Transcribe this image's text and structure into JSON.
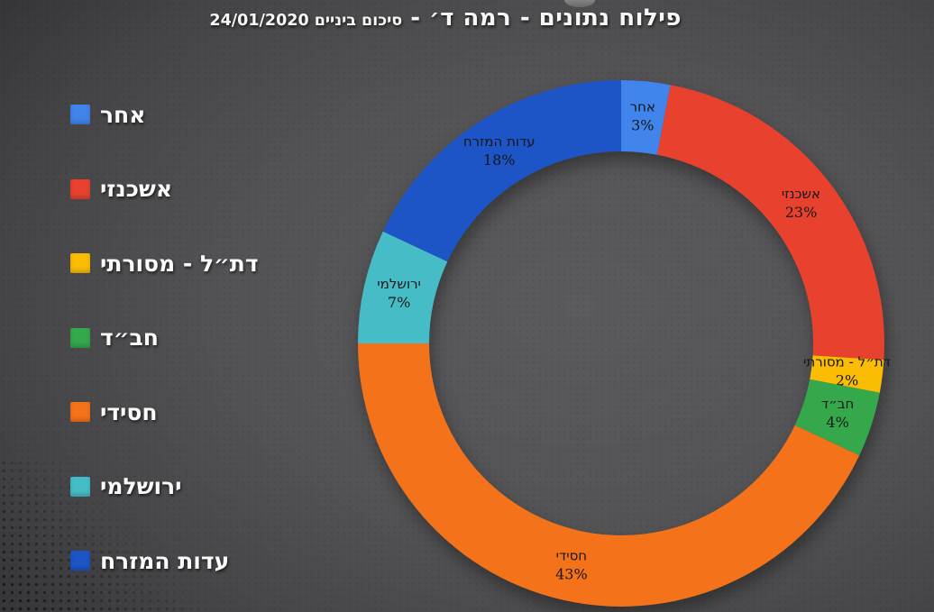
{
  "title": {
    "main": "פילוח נתונים - רמה ד׳ -",
    "sub": "סיכום ביניים 24/01/2020"
  },
  "legend": {
    "position": "left",
    "items": [
      {
        "label": "אחר",
        "color": "#4184EC"
      },
      {
        "label": "אשכנזי",
        "color": "#E8422F"
      },
      {
        "label": "דת״ל - מסורתי",
        "color": "#FBBC04"
      },
      {
        "label": "חב״ד",
        "color": "#35A84C"
      },
      {
        "label": "חסידי",
        "color": "#F4731A"
      },
      {
        "label": "ירושלמי",
        "color": "#46BDC6"
      },
      {
        "label": "עדות המזרח",
        "color": "#1D55C6"
      }
    ]
  },
  "chart_data": {
    "type": "pie",
    "subtype": "donut",
    "title": "פילוח נתונים - רמה ד׳ - סיכום ביניים 24/01/2020",
    "categories": [
      "אחר",
      "אשכנזי",
      "דת״ל - מסורתי",
      "חב״ד",
      "חסידי",
      "ירושלמי",
      "עדות המזרח"
    ],
    "values": [
      3,
      23,
      2,
      4,
      43,
      7,
      18
    ],
    "unit": "%",
    "colors": [
      "#4184EC",
      "#E8422F",
      "#FBBC04",
      "#35A84C",
      "#F4731A",
      "#46BDC6",
      "#1D55C6"
    ],
    "start_angle_deg": 0,
    "direction": "clockwise",
    "hole_ratio": 0.73,
    "legend_position": "left",
    "slice_label_format": "category + percent",
    "slice_label_color": "#161616"
  }
}
